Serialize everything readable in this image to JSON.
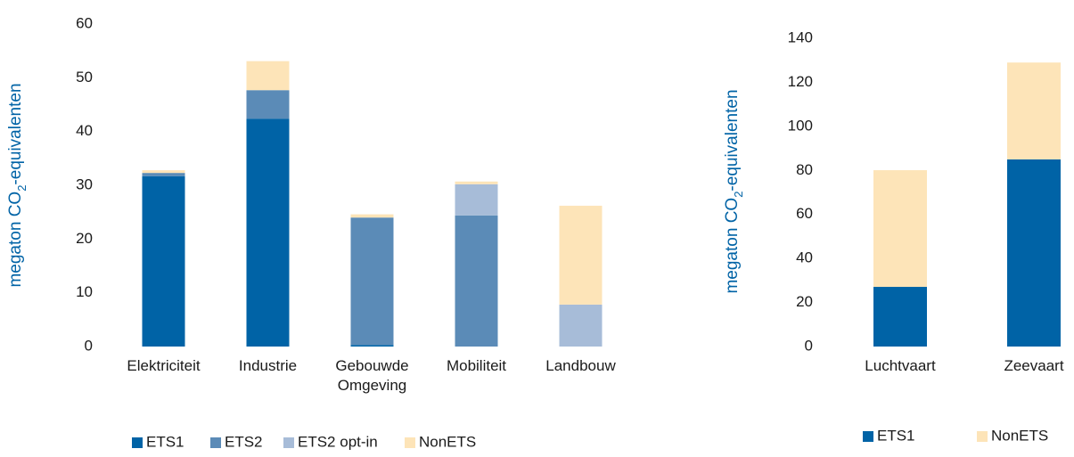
{
  "chart_data": [
    {
      "type": "bar",
      "stacked": true,
      "y_label": [
        "megaton CO",
        "2",
        "-equivalenten"
      ],
      "categories": [
        "Elektriciteit",
        "Industrie",
        "Gebouwde Omgeving",
        "Mobiliteit",
        "Landbouw"
      ],
      "series": [
        {
          "name": "ETS1",
          "color": "#0063a6",
          "values": [
            31.7,
            42.4,
            0.3,
            0,
            0
          ]
        },
        {
          "name": "ETS2",
          "color": "#5b8bb7",
          "values": [
            0.6,
            5.3,
            23.7,
            24.4,
            0
          ]
        },
        {
          "name": "ETS2 opt-in",
          "color": "#a7bcd8",
          "values": [
            0,
            0,
            0,
            5.8,
            7.8
          ]
        },
        {
          "name": "NonETS",
          "color": "#fde4b8",
          "values": [
            0.5,
            5.4,
            0.6,
            0.5,
            18.4
          ]
        }
      ],
      "ylim": [
        0,
        60
      ],
      "yticks": [
        0,
        10,
        20,
        30,
        40,
        50,
        60
      ],
      "legend": "bottom"
    },
    {
      "type": "bar",
      "stacked": true,
      "y_label": [
        "megaton CO",
        "2",
        "-equivalenten"
      ],
      "categories": [
        "Luchtvaart",
        "Zeevaart"
      ],
      "series": [
        {
          "name": "ETS1",
          "color": "#0063a6",
          "values": [
            27.1,
            85
          ]
        },
        {
          "name": "NonETS",
          "color": "#fde4b8",
          "values": [
            53,
            44
          ]
        }
      ],
      "ylim": [
        0,
        140
      ],
      "yticks": [
        0,
        20,
        40,
        60,
        80,
        100,
        120,
        140
      ],
      "legend": "bottom"
    }
  ]
}
